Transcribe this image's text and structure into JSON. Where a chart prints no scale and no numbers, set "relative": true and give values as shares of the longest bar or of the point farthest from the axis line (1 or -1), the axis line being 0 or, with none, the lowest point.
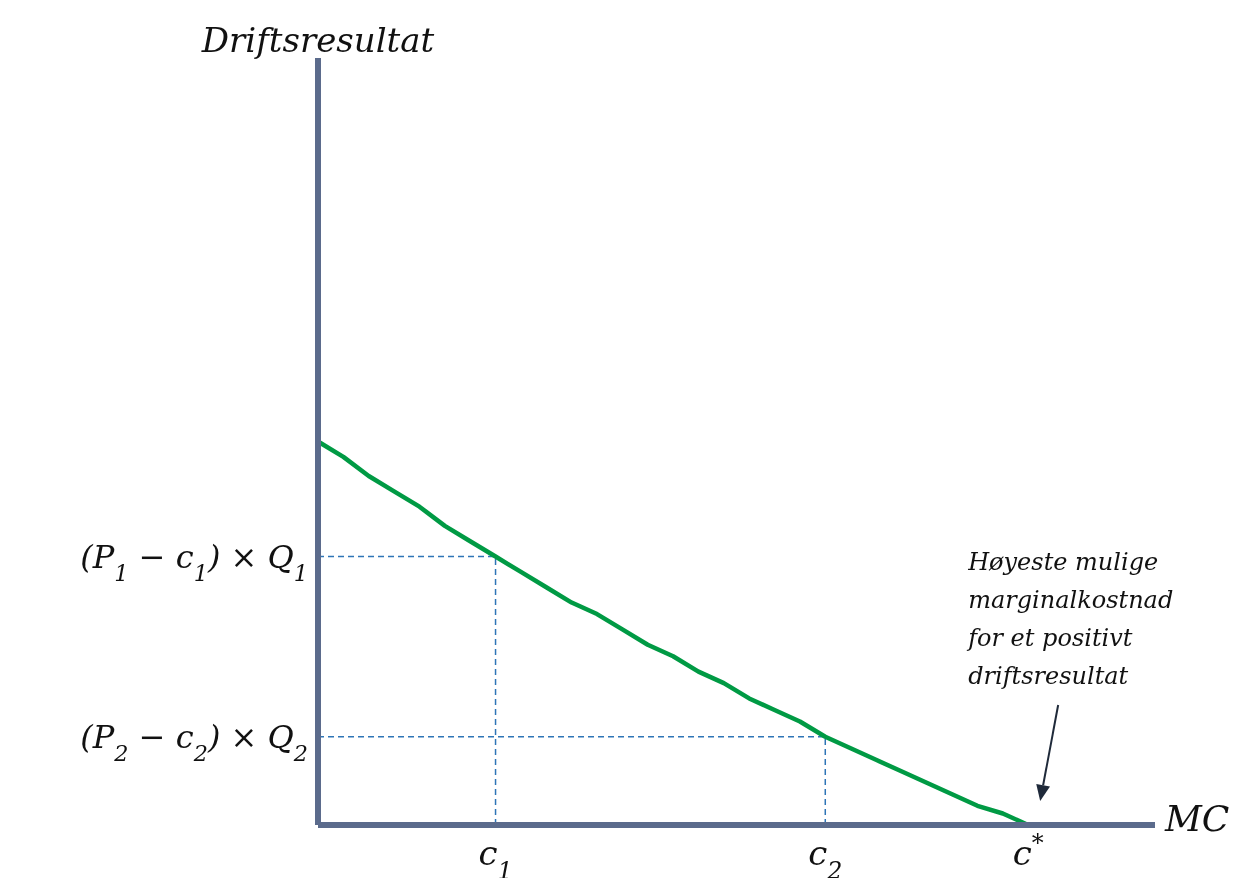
{
  "chart_data": {
    "type": "line",
    "xlabel": "MC",
    "relative": true,
    "categories": [
      null,
      null,
      null,
      null,
      null,
      null,
      null,
      "c$_{1}$",
      null,
      null,
      null,
      null,
      null,
      null,
      null,
      null,
      null,
      null,
      null,
      null,
      "c$_{2}$",
      null,
      null,
      null,
      null,
      null,
      null,
      null,
      "c$^{*}$",
      null,
      null,
      null,
      null,
      null
    ],
    "grid": false,
    "legend": false,
    "marker": "none",
    "series": [
      {
        "color": "#009a44",
        "line_style": "solid",
        "values": [
          1,
          0.96,
          0.91,
          0.87,
          0.83,
          0.78,
          0.74,
          0.7,
          0.66,
          0.62,
          0.58,
          0.55,
          0.51,
          0.47,
          0.44,
          0.4,
          0.37,
          0.33,
          0.3,
          0.27,
          0.23,
          0.2,
          0.17,
          0.14,
          0.11,
          0.08,
          0.05,
          0.03,
          0,
          null,
          null,
          null,
          null,
          null
        ]
      }
    ],
    "ref_lines": [
      {
        "axis": "y",
        "value": 0.7,
        "label": "(P$_{1}$ − c$_{1}$) × Q$_{1}$",
        "color": "#2e75b6",
        "line_style": "dashed"
      },
      {
        "axis": "y",
        "value": 0.23,
        "label": "(P$_{2}$ − c$_{2}$) × Q$_{2}$",
        "color": "#2e75b6",
        "line_style": "dashed"
      },
      {
        "axis": "x",
        "value": "c$_{1}$",
        "color": "#2e75b6",
        "line_style": "dashed"
      },
      {
        "axis": "x",
        "value": "c$_{2}$",
        "color": "#2e75b6",
        "line_style": "dashed"
      }
    ],
    "annotations": [
      "Driftsresultat",
      "Høyeste mulige marginalkostnad for et positivt driftsresultat"
    ]
  }
}
